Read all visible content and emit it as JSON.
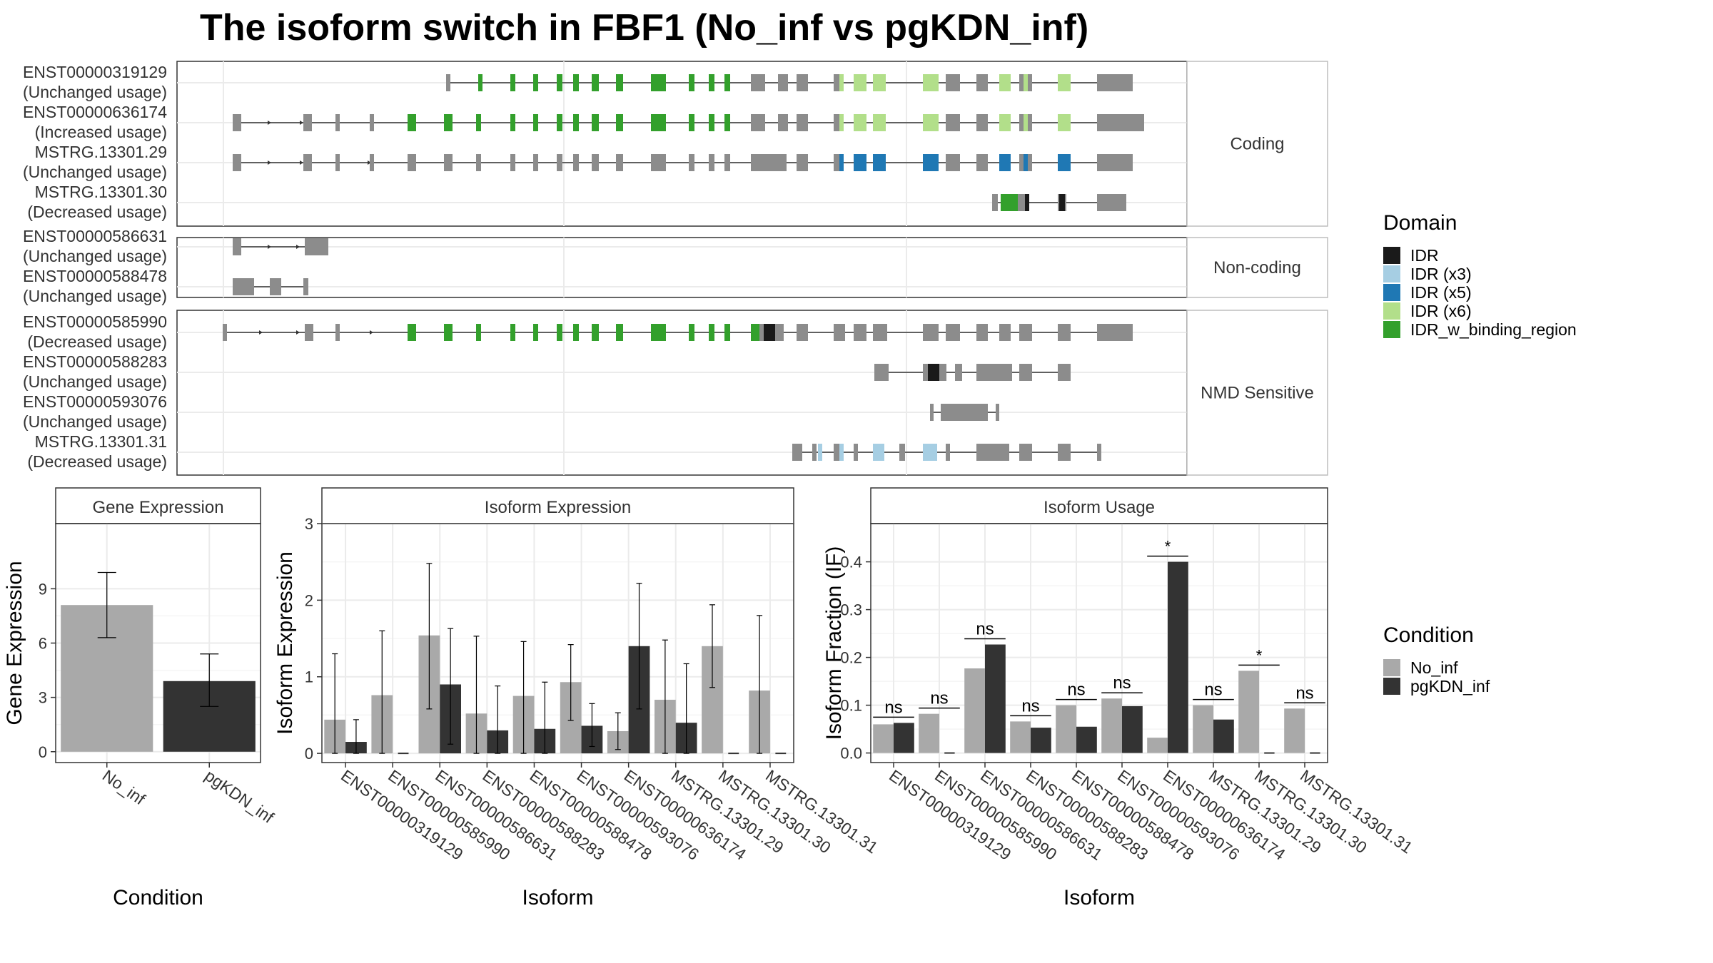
{
  "title": "The isoform switch in FBF1 (No_inf vs pgKDN_inf)",
  "colors": {
    "no_inf": "#a9a9a9",
    "pgkdn": "#333333",
    "exon": "#8c8c8c",
    "IDR": "#1a1a1a",
    "IDR_x3": "#a6cee3",
    "IDR_x5": "#1f78b4",
    "IDR_x6": "#b2df8a",
    "IDR_w_binding_region": "#33a02c"
  },
  "structure_panels": [
    {
      "label": "Coding",
      "isoforms": [
        {
          "id": "ENST00000319129",
          "usage": "(Unchanged usage)"
        },
        {
          "id": "ENST00000636174",
          "usage": "(Increased usage)"
        },
        {
          "id": "MSTRG.13301.29",
          "usage": "(Unchanged usage)"
        },
        {
          "id": "MSTRG.13301.30",
          "usage": "(Decreased usage)"
        }
      ]
    },
    {
      "label": "Non-coding",
      "isoforms": [
        {
          "id": "ENST00000586631",
          "usage": "(Unchanged usage)"
        },
        {
          "id": "ENST00000588478",
          "usage": "(Unchanged usage)"
        }
      ]
    },
    {
      "label": "NMD Sensitive",
      "isoforms": [
        {
          "id": "ENST00000585990",
          "usage": "(Decreased usage)"
        },
        {
          "id": "ENST00000588283",
          "usage": "(Unchanged usage)"
        },
        {
          "id": "ENST00000593076",
          "usage": "(Unchanged usage)"
        },
        {
          "id": "MSTRG.13301.31",
          "usage": "(Decreased usage)"
        }
      ]
    }
  ],
  "legend_domain": {
    "title": "Domain",
    "items": [
      {
        "label": "IDR",
        "key": "IDR"
      },
      {
        "label": "IDR (x3)",
        "key": "IDR_x3"
      },
      {
        "label": "IDR (x5)",
        "key": "IDR_x5"
      },
      {
        "label": "IDR (x6)",
        "key": "IDR_x6"
      },
      {
        "label": "IDR_w_binding_region",
        "key": "IDR_w_binding_region"
      }
    ]
  },
  "legend_condition": {
    "title": "Condition",
    "items": [
      {
        "label": "No_inf",
        "key": "no_inf"
      },
      {
        "label": "pgKDN_inf",
        "key": "pgkdn"
      }
    ]
  },
  "chart_data": [
    {
      "type": "bar",
      "strip": "Gene Expression",
      "xlabel": "Condition",
      "ylabel": "Gene Expression",
      "categories": [
        "No_inf",
        "pgKDN_inf"
      ],
      "values": [
        8.1,
        3.9
      ],
      "error_low": [
        6.3,
        2.5
      ],
      "error_high": [
        9.9,
        5.4
      ],
      "ylim": [
        -0.6,
        12.6
      ],
      "yticks": [
        0,
        3,
        6,
        9
      ]
    },
    {
      "type": "bar",
      "strip": "Isoform Expression",
      "xlabel": "Isoform",
      "ylabel": "Isoform Expression",
      "categories": [
        "ENST00000319129",
        "ENST00000585990",
        "ENST00000586631",
        "ENST00000588283",
        "ENST00000588478",
        "ENST00000593076",
        "ENST00000636174",
        "MSTRG.13301.29",
        "MSTRG.13301.30",
        "MSTRG.13301.31"
      ],
      "series": [
        {
          "name": "No_inf",
          "values": [
            0.44,
            0.76,
            1.54,
            0.52,
            0.75,
            0.93,
            0.29,
            0.7,
            1.4,
            0.82
          ],
          "error_low": [
            0.0,
            0.0,
            0.58,
            0.0,
            0.0,
            0.43,
            0.05,
            0.0,
            0.86,
            0.0
          ],
          "error_high": [
            1.3,
            1.6,
            2.48,
            1.53,
            1.46,
            1.42,
            0.53,
            1.48,
            1.94,
            1.8
          ]
        },
        {
          "name": "pgKDN_inf",
          "values": [
            0.15,
            0.0,
            0.9,
            0.3,
            0.32,
            0.36,
            1.4,
            0.4,
            0.0,
            0.0
          ],
          "error_low": [
            0.0,
            0.0,
            0.12,
            0.0,
            0.0,
            0.09,
            0.58,
            0.0,
            0.0,
            0.0
          ],
          "error_high": [
            0.44,
            0.0,
            1.63,
            0.88,
            0.93,
            0.65,
            2.22,
            1.17,
            0.0,
            0.0
          ]
        }
      ],
      "ylim": [
        -0.12,
        3.0
      ],
      "yticks": [
        0,
        1,
        2,
        3
      ]
    },
    {
      "type": "bar",
      "strip": "Isoform Usage",
      "xlabel": "Isoform",
      "ylabel": "Isoform Fraction (IF)",
      "categories": [
        "ENST00000319129",
        "ENST00000585990",
        "ENST00000586631",
        "ENST00000588283",
        "ENST00000588478",
        "ENST00000593076",
        "ENST00000636174",
        "MSTRG.13301.29",
        "MSTRG.13301.30",
        "MSTRG.13301.31"
      ],
      "series": [
        {
          "name": "No_inf",
          "values": [
            0.06,
            0.082,
            0.177,
            0.066,
            0.1,
            0.114,
            0.032,
            0.1,
            0.172,
            0.093
          ]
        },
        {
          "name": "pgKDN_inf",
          "values": [
            0.063,
            0.0,
            0.227,
            0.053,
            0.055,
            0.098,
            0.4,
            0.07,
            0.0,
            0.0
          ]
        }
      ],
      "significance": [
        "ns",
        "ns",
        "ns",
        "ns",
        "ns",
        "ns",
        "*",
        "ns",
        "*",
        "ns"
      ],
      "ylim": [
        -0.02,
        0.48
      ],
      "yticks": [
        "0.0",
        "0.1",
        "0.2",
        "0.3",
        "0.4"
      ]
    }
  ]
}
